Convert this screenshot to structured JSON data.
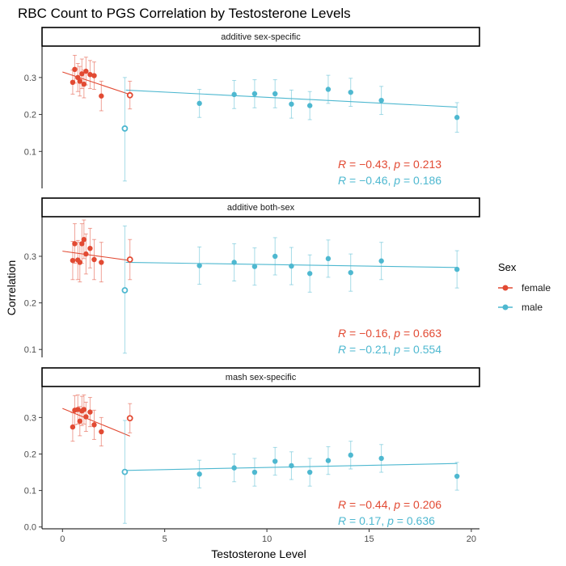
{
  "colors": {
    "female": "#E24A33",
    "male": "#4EB8D0"
  },
  "chart_data": {
    "type": "scatter",
    "title": "RBC Count to PGS Correlation by Testosterone Levels",
    "xlabel": "Testosterone Level",
    "ylabel": "Correlation",
    "xlim": [
      -1,
      20.4
    ],
    "x_ticks": [
      0,
      5,
      10,
      15,
      20
    ],
    "legend": {
      "title": "Sex",
      "position": "right",
      "entries": [
        {
          "key": "female",
          "label": "female"
        },
        {
          "key": "male",
          "label": "male"
        }
      ]
    },
    "panels": [
      {
        "strip": "additive sex-specific",
        "ylim": [
          0.0,
          0.385
        ],
        "y_ticks": [
          0.1,
          0.2,
          0.3
        ],
        "series": {
          "female": {
            "points": [
              {
                "x": 0.5,
                "y": 0.287,
                "lo": 0.255,
                "hi": 0.32
              },
              {
                "x": 0.6,
                "y": 0.322,
                "lo": 0.285,
                "hi": 0.36
              },
              {
                "x": 0.75,
                "y": 0.3,
                "lo": 0.262,
                "hi": 0.338
              },
              {
                "x": 0.85,
                "y": 0.29,
                "lo": 0.25,
                "hi": 0.33
              },
              {
                "x": 0.95,
                "y": 0.31,
                "lo": 0.27,
                "hi": 0.35
              },
              {
                "x": 1.05,
                "y": 0.282,
                "lo": 0.245,
                "hi": 0.32
              },
              {
                "x": 1.15,
                "y": 0.317,
                "lo": 0.28,
                "hi": 0.355
              },
              {
                "x": 1.35,
                "y": 0.308,
                "lo": 0.27,
                "hi": 0.346
              },
              {
                "x": 1.55,
                "y": 0.305,
                "lo": 0.268,
                "hi": 0.342
              },
              {
                "x": 1.9,
                "y": 0.25,
                "lo": 0.21,
                "hi": 0.29
              },
              {
                "x": 3.3,
                "y": 0.252,
                "lo": 0.215,
                "hi": 0.29,
                "hollow": true
              }
            ],
            "fit": [
              [
                0.0,
                0.315
              ],
              [
                3.3,
                0.254
              ]
            ]
          },
          "male": {
            "points": [
              {
                "x": 3.05,
                "y": 0.162,
                "lo": 0.02,
                "hi": 0.3,
                "hollow": true
              },
              {
                "x": 6.7,
                "y": 0.23,
                "lo": 0.192,
                "hi": 0.268
              },
              {
                "x": 8.4,
                "y": 0.254,
                "lo": 0.216,
                "hi": 0.292
              },
              {
                "x": 9.4,
                "y": 0.256,
                "lo": 0.218,
                "hi": 0.294
              },
              {
                "x": 10.4,
                "y": 0.256,
                "lo": 0.218,
                "hi": 0.294
              },
              {
                "x": 11.2,
                "y": 0.228,
                "lo": 0.19,
                "hi": 0.266
              },
              {
                "x": 12.1,
                "y": 0.224,
                "lo": 0.186,
                "hi": 0.262
              },
              {
                "x": 13.0,
                "y": 0.268,
                "lo": 0.23,
                "hi": 0.306
              },
              {
                "x": 14.1,
                "y": 0.26,
                "lo": 0.222,
                "hi": 0.298
              },
              {
                "x": 15.6,
                "y": 0.238,
                "lo": 0.2,
                "hi": 0.276
              },
              {
                "x": 19.3,
                "y": 0.192,
                "lo": 0.152,
                "hi": 0.232
              }
            ],
            "fit": [
              [
                3.1,
                0.266
              ],
              [
                19.3,
                0.22
              ]
            ]
          }
        },
        "stats": [
          {
            "sex": "female",
            "R": "−0.43",
            "p": "0.213"
          },
          {
            "sex": "male",
            "R": "−0.46",
            "p": "0.186"
          }
        ]
      },
      {
        "strip": "additive both-sex",
        "ylim": [
          0.083,
          0.385
        ],
        "y_ticks": [
          0.1,
          0.2,
          0.3
        ],
        "series": {
          "female": {
            "points": [
              {
                "x": 0.5,
                "y": 0.291,
                "lo": 0.25,
                "hi": 0.332
              },
              {
                "x": 0.6,
                "y": 0.327,
                "lo": 0.285,
                "hi": 0.37
              },
              {
                "x": 0.75,
                "y": 0.292,
                "lo": 0.25,
                "hi": 0.334
              },
              {
                "x": 0.85,
                "y": 0.287,
                "lo": 0.245,
                "hi": 0.33
              },
              {
                "x": 0.95,
                "y": 0.327,
                "lo": 0.285,
                "hi": 0.37
              },
              {
                "x": 1.05,
                "y": 0.336,
                "lo": 0.295,
                "hi": 0.378
              },
              {
                "x": 1.15,
                "y": 0.305,
                "lo": 0.262,
                "hi": 0.348
              },
              {
                "x": 1.35,
                "y": 0.317,
                "lo": 0.275,
                "hi": 0.36
              },
              {
                "x": 1.55,
                "y": 0.293,
                "lo": 0.25,
                "hi": 0.336
              },
              {
                "x": 1.9,
                "y": 0.287,
                "lo": 0.245,
                "hi": 0.33
              },
              {
                "x": 3.3,
                "y": 0.293,
                "lo": 0.25,
                "hi": 0.336,
                "hollow": true
              }
            ],
            "fit": [
              [
                0.0,
                0.311
              ],
              [
                3.3,
                0.291
              ]
            ]
          },
          "male": {
            "points": [
              {
                "x": 3.05,
                "y": 0.227,
                "lo": 0.092,
                "hi": 0.365,
                "hollow": true
              },
              {
                "x": 6.7,
                "y": 0.28,
                "lo": 0.24,
                "hi": 0.32
              },
              {
                "x": 8.4,
                "y": 0.287,
                "lo": 0.247,
                "hi": 0.327
              },
              {
                "x": 9.4,
                "y": 0.278,
                "lo": 0.238,
                "hi": 0.318
              },
              {
                "x": 10.4,
                "y": 0.3,
                "lo": 0.26,
                "hi": 0.34
              },
              {
                "x": 11.2,
                "y": 0.279,
                "lo": 0.239,
                "hi": 0.319
              },
              {
                "x": 12.1,
                "y": 0.263,
                "lo": 0.223,
                "hi": 0.303
              },
              {
                "x": 13.0,
                "y": 0.295,
                "lo": 0.255,
                "hi": 0.335
              },
              {
                "x": 14.1,
                "y": 0.265,
                "lo": 0.225,
                "hi": 0.305
              },
              {
                "x": 15.6,
                "y": 0.29,
                "lo": 0.25,
                "hi": 0.33
              },
              {
                "x": 19.3,
                "y": 0.272,
                "lo": 0.232,
                "hi": 0.312
              }
            ],
            "fit": [
              [
                3.1,
                0.287
              ],
              [
                19.3,
                0.276
              ]
            ]
          }
        },
        "stats": [
          {
            "sex": "female",
            "R": "−0.16",
            "p": "0.663"
          },
          {
            "sex": "male",
            "R": "−0.21",
            "p": "0.554"
          }
        ]
      },
      {
        "strip": "mash sex-specific",
        "ylim": [
          -0.005,
          0.385
        ],
        "y_ticks": [
          0.0,
          0.1,
          0.2,
          0.3
        ],
        "series": {
          "female": {
            "points": [
              {
                "x": 0.5,
                "y": 0.274,
                "lo": 0.235,
                "hi": 0.313
              },
              {
                "x": 0.6,
                "y": 0.32,
                "lo": 0.28,
                "hi": 0.36
              },
              {
                "x": 0.75,
                "y": 0.322,
                "lo": 0.282,
                "hi": 0.362
              },
              {
                "x": 0.85,
                "y": 0.29,
                "lo": 0.25,
                "hi": 0.33
              },
              {
                "x": 0.95,
                "y": 0.318,
                "lo": 0.278,
                "hi": 0.358
              },
              {
                "x": 1.05,
                "y": 0.322,
                "lo": 0.282,
                "hi": 0.362
              },
              {
                "x": 1.15,
                "y": 0.302,
                "lo": 0.262,
                "hi": 0.342
              },
              {
                "x": 1.35,
                "y": 0.315,
                "lo": 0.275,
                "hi": 0.355
              },
              {
                "x": 1.55,
                "y": 0.28,
                "lo": 0.24,
                "hi": 0.32
              },
              {
                "x": 1.9,
                "y": 0.261,
                "lo": 0.222,
                "hi": 0.3
              },
              {
                "x": 3.3,
                "y": 0.298,
                "lo": 0.258,
                "hi": 0.338,
                "hollow": true
              }
            ],
            "fit": [
              [
                0.0,
                0.325
              ],
              [
                3.3,
                0.249
              ]
            ]
          },
          "male": {
            "points": [
              {
                "x": 3.05,
                "y": 0.151,
                "lo": 0.01,
                "hi": 0.292,
                "hollow": true
              },
              {
                "x": 6.7,
                "y": 0.145,
                "lo": 0.107,
                "hi": 0.183
              },
              {
                "x": 8.4,
                "y": 0.162,
                "lo": 0.124,
                "hi": 0.2
              },
              {
                "x": 9.4,
                "y": 0.15,
                "lo": 0.112,
                "hi": 0.188
              },
              {
                "x": 10.4,
                "y": 0.18,
                "lo": 0.142,
                "hi": 0.218
              },
              {
                "x": 11.2,
                "y": 0.168,
                "lo": 0.13,
                "hi": 0.206
              },
              {
                "x": 12.1,
                "y": 0.15,
                "lo": 0.112,
                "hi": 0.188
              },
              {
                "x": 13.0,
                "y": 0.182,
                "lo": 0.144,
                "hi": 0.22
              },
              {
                "x": 14.1,
                "y": 0.197,
                "lo": 0.159,
                "hi": 0.235
              },
              {
                "x": 15.6,
                "y": 0.188,
                "lo": 0.15,
                "hi": 0.226
              },
              {
                "x": 19.3,
                "y": 0.139,
                "lo": 0.101,
                "hi": 0.177
              }
            ],
            "fit": [
              [
                3.1,
                0.155
              ],
              [
                19.3,
                0.174
              ]
            ]
          }
        },
        "stats": [
          {
            "sex": "female",
            "R": "−0.44",
            "p": "0.206"
          },
          {
            "sex": "male",
            "R": "0.17",
            "p": "0.636"
          }
        ]
      }
    ]
  }
}
